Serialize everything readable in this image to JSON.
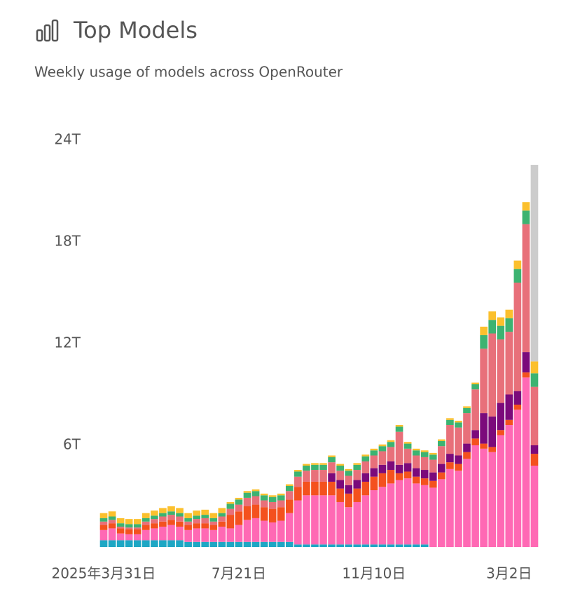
{
  "chart_data": {
    "type": "stacked-bar",
    "title": "Top Models",
    "subtitle": "Weekly usage of models across OpenRouter",
    "categories": [
      "2025年3月31日",
      null,
      null,
      null,
      null,
      null,
      null,
      null,
      null,
      null,
      null,
      null,
      null,
      null,
      null,
      null,
      "7月21日",
      null,
      null,
      null,
      null,
      null,
      null,
      null,
      null,
      null,
      null,
      null,
      null,
      null,
      null,
      null,
      "11月10日",
      null,
      null,
      null,
      null,
      null,
      null,
      null,
      null,
      null,
      null,
      null,
      null,
      null,
      null,
      null,
      "3月2日",
      null,
      null,
      null
    ],
    "ylim": [
      0,
      24
    ],
    "yticks": [
      {
        "value": 6,
        "label": "6T"
      },
      {
        "value": 12,
        "label": "12T"
      },
      {
        "value": 18,
        "label": "18T"
      },
      {
        "value": 24,
        "label": "24T"
      }
    ],
    "grid": false,
    "series": [
      {
        "color": "#1ea7c4",
        "values": [
          0.4,
          0.4,
          0.4,
          0.4,
          0.4,
          0.4,
          0.4,
          0.4,
          0.4,
          0.4,
          0.3,
          0.3,
          0.3,
          0.3,
          0.3,
          0.3,
          0.3,
          0.3,
          0.3,
          0.3,
          0.3,
          0.3,
          0.3,
          0.15,
          0.15,
          0.15,
          0.15,
          0.15,
          0.15,
          0.15,
          0.15,
          0.15,
          0.15,
          0.15,
          0.15,
          0.15,
          0.15,
          0.15,
          0.15,
          null,
          null,
          null,
          null,
          null,
          null,
          null,
          null,
          null,
          null,
          null,
          null,
          null
        ]
      },
      {
        "color": "#ff69b4",
        "values": [
          0.6,
          0.7,
          0.4,
          0.35,
          0.35,
          0.6,
          0.7,
          0.8,
          0.9,
          0.8,
          0.7,
          0.8,
          0.8,
          0.7,
          0.9,
          0.8,
          1.0,
          1.3,
          1.4,
          1.25,
          1.15,
          1.25,
          1.7,
          2.6,
          2.9,
          2.9,
          2.9,
          2.9,
          2.5,
          2.2,
          2.5,
          2.9,
          3.2,
          3.4,
          3.6,
          3.8,
          3.9,
          3.6,
          3.5,
          3.5,
          4.0,
          4.6,
          4.5,
          5.2,
          6.0,
          5.8,
          5.6,
          6.6,
          7.2,
          8.1,
          10.0,
          4.8
        ]
      },
      {
        "color": "#f4511e",
        "values": [
          0.3,
          0.3,
          0.3,
          0.3,
          0.3,
          0.3,
          0.3,
          0.3,
          0.3,
          0.3,
          0.3,
          0.3,
          0.3,
          0.3,
          0.3,
          0.8,
          0.8,
          0.8,
          0.8,
          0.8,
          0.8,
          0.8,
          0.8,
          0.8,
          0.8,
          0.8,
          0.8,
          0.8,
          0.8,
          0.8,
          0.8,
          0.8,
          0.8,
          0.8,
          0.8,
          0.4,
          0.4,
          0.4,
          0.4,
          0.4,
          0.4,
          0.4,
          0.4,
          0.4,
          0.4,
          0.3,
          0.3,
          0.3,
          0.3,
          0.3,
          0.3,
          0.7
        ]
      },
      {
        "color": "#7b0a7b",
        "values": [
          null,
          null,
          null,
          null,
          null,
          null,
          null,
          null,
          null,
          null,
          null,
          null,
          null,
          null,
          null,
          null,
          null,
          null,
          null,
          null,
          null,
          null,
          null,
          null,
          null,
          null,
          null,
          0.5,
          0.5,
          0.5,
          0.5,
          0.5,
          0.5,
          0.5,
          0.5,
          0.5,
          0.5,
          0.5,
          0.5,
          0.5,
          0.5,
          0.5,
          0.5,
          0.5,
          0.5,
          1.8,
          1.8,
          1.6,
          1.5,
          0.8,
          1.2,
          0.5
        ]
      },
      {
        "color": "#e8707a",
        "values": [
          0.2,
          0.2,
          0.1,
          0.1,
          0.1,
          0.2,
          0.25,
          0.3,
          0.3,
          0.3,
          0.2,
          0.25,
          0.3,
          0.2,
          0.3,
          0.35,
          0.4,
          0.5,
          0.5,
          0.4,
          0.4,
          0.4,
          0.5,
          0.6,
          0.65,
          0.7,
          0.7,
          0.65,
          0.55,
          0.55,
          0.6,
          0.7,
          0.75,
          0.8,
          0.85,
          1.95,
          0.85,
          0.75,
          0.75,
          0.75,
          1.05,
          1.7,
          1.65,
          1.8,
          2.4,
          3.8,
          4.9,
          3.75,
          3.7,
          6.4,
          7.55,
          3.45
        ]
      },
      {
        "color": "#3cb371",
        "values": [
          0.2,
          0.2,
          0.2,
          0.2,
          0.2,
          0.2,
          0.2,
          0.2,
          0.2,
          0.2,
          0.2,
          0.2,
          0.2,
          0.2,
          0.2,
          0.3,
          0.3,
          0.3,
          0.3,
          0.3,
          0.3,
          0.3,
          0.3,
          0.3,
          0.3,
          0.3,
          0.3,
          0.3,
          0.3,
          0.3,
          0.3,
          0.3,
          0.3,
          0.3,
          0.3,
          0.3,
          0.3,
          0.3,
          0.3,
          0.3,
          0.3,
          0.3,
          0.3,
          0.3,
          0.3,
          0.8,
          0.8,
          0.8,
          0.8,
          0.8,
          0.8,
          0.8
        ]
      },
      {
        "color": "#fbc02d",
        "values": [
          0.3,
          0.3,
          0.3,
          0.3,
          0.3,
          0.3,
          0.3,
          0.3,
          0.3,
          0.3,
          0.3,
          0.3,
          0.3,
          0.3,
          0.3,
          0.1,
          0.1,
          0.1,
          0.1,
          0.1,
          0.1,
          0.1,
          0.1,
          0.1,
          0.1,
          0.1,
          0.1,
          0.1,
          0.1,
          0.1,
          0.1,
          0.1,
          0.1,
          0.1,
          0.1,
          0.1,
          0.1,
          0.1,
          0.1,
          0.1,
          0.1,
          0.1,
          0.1,
          0.1,
          0.1,
          0.5,
          0.5,
          0.5,
          0.5,
          0.5,
          0.5,
          0.7
        ]
      },
      {
        "color": "#cccccc",
        "values": [
          null,
          null,
          null,
          null,
          null,
          null,
          null,
          null,
          null,
          null,
          null,
          null,
          null,
          null,
          null,
          null,
          null,
          null,
          null,
          null,
          null,
          null,
          null,
          null,
          null,
          null,
          null,
          null,
          null,
          null,
          null,
          null,
          null,
          null,
          null,
          null,
          null,
          null,
          null,
          null,
          null,
          null,
          null,
          null,
          null,
          null,
          null,
          null,
          null,
          null,
          null,
          11.6
        ]
      }
    ]
  }
}
